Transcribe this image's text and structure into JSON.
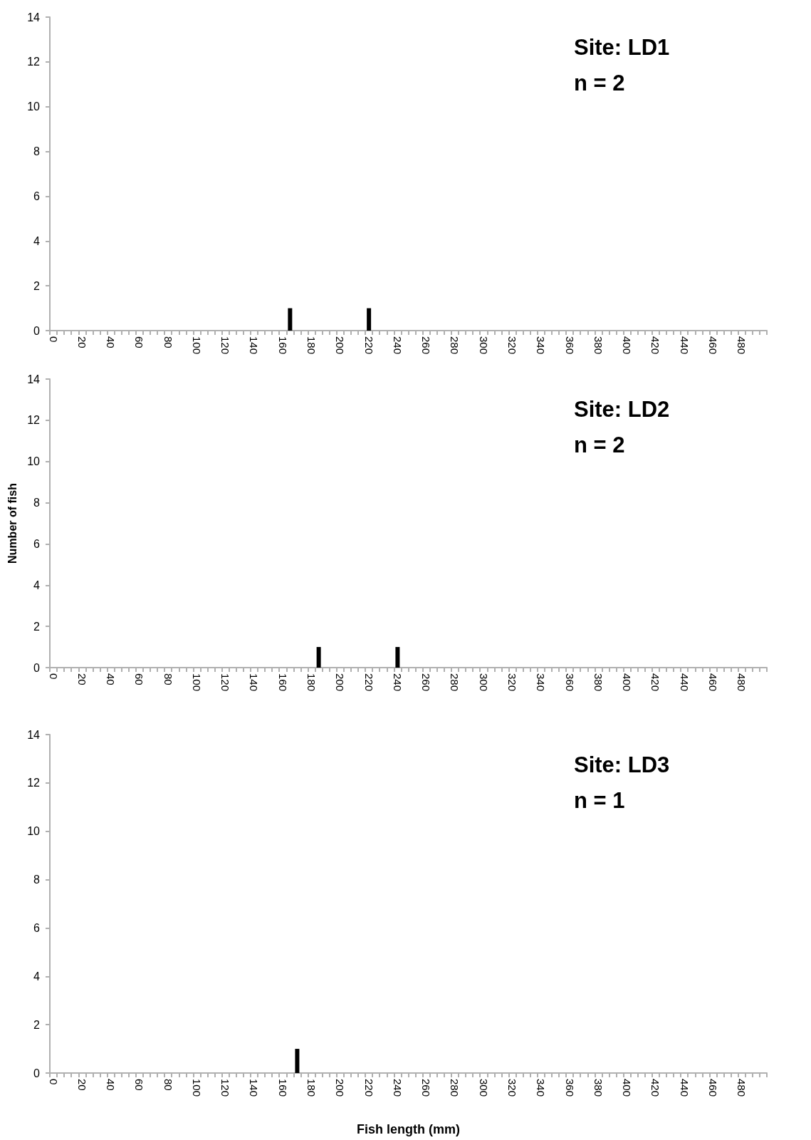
{
  "chart_data": [
    {
      "type": "bar",
      "annotations": [
        "Site: LD1",
        "n = 2"
      ],
      "color": "#000000",
      "categories": [
        "0",
        null,
        null,
        null,
        "20",
        null,
        null,
        null,
        "40",
        null,
        null,
        null,
        "60",
        null,
        null,
        null,
        "80",
        null,
        null,
        null,
        "100",
        null,
        null,
        null,
        "120",
        null,
        null,
        null,
        "140",
        null,
        null,
        null,
        "160",
        null,
        null,
        null,
        "180",
        null,
        null,
        null,
        "200",
        null,
        null,
        null,
        "220",
        null,
        null,
        null,
        "240",
        null,
        null,
        null,
        "260",
        null,
        null,
        null,
        "280",
        null,
        null,
        null,
        "300",
        null,
        null,
        null,
        "320",
        null,
        null,
        null,
        "340",
        null,
        null,
        null,
        "360",
        null,
        null,
        null,
        "380",
        null,
        null,
        null,
        "400",
        null,
        null,
        null,
        "420",
        null,
        null,
        null,
        "440",
        null,
        null,
        null,
        "460",
        null,
        null,
        null,
        "480",
        null,
        null,
        null
      ],
      "values": [
        0,
        0,
        0,
        0,
        0,
        0,
        0,
        0,
        0,
        0,
        0,
        0,
        0,
        0,
        0,
        0,
        0,
        0,
        0,
        0,
        0,
        0,
        0,
        0,
        0,
        0,
        0,
        0,
        0,
        0,
        0,
        0,
        0,
        1,
        0,
        0,
        0,
        0,
        0,
        0,
        0,
        0,
        0,
        0,
        1,
        0,
        0,
        0,
        0,
        0,
        0,
        0,
        0,
        0,
        0,
        0,
        0,
        0,
        0,
        0,
        0,
        0,
        0,
        0,
        0,
        0,
        0,
        0,
        0,
        0,
        0,
        0,
        0,
        0,
        0,
        0,
        0,
        0,
        0,
        0,
        0,
        0,
        0,
        0,
        0,
        0,
        0,
        0,
        0,
        0,
        0,
        0,
        0,
        0,
        0,
        0,
        0,
        0,
        0,
        0
      ],
      "ylim": [
        0,
        14
      ],
      "yticks": [
        0,
        2,
        4,
        6,
        8,
        10,
        12,
        14
      ]
    },
    {
      "type": "bar",
      "annotations": [
        "Site: LD2",
        "n = 2"
      ],
      "ylabel": "Number of fish",
      "color": "#000000",
      "categories": [
        "0",
        null,
        null,
        null,
        "20",
        null,
        null,
        null,
        "40",
        null,
        null,
        null,
        "60",
        null,
        null,
        null,
        "80",
        null,
        null,
        null,
        "100",
        null,
        null,
        null,
        "120",
        null,
        null,
        null,
        "140",
        null,
        null,
        null,
        "160",
        null,
        null,
        null,
        "180",
        null,
        null,
        null,
        "200",
        null,
        null,
        null,
        "220",
        null,
        null,
        null,
        "240",
        null,
        null,
        null,
        "260",
        null,
        null,
        null,
        "280",
        null,
        null,
        null,
        "300",
        null,
        null,
        null,
        "320",
        null,
        null,
        null,
        "340",
        null,
        null,
        null,
        "360",
        null,
        null,
        null,
        "380",
        null,
        null,
        null,
        "400",
        null,
        null,
        null,
        "420",
        null,
        null,
        null,
        "440",
        null,
        null,
        null,
        "460",
        null,
        null,
        null,
        "480",
        null,
        null,
        null
      ],
      "values": [
        0,
        0,
        0,
        0,
        0,
        0,
        0,
        0,
        0,
        0,
        0,
        0,
        0,
        0,
        0,
        0,
        0,
        0,
        0,
        0,
        0,
        0,
        0,
        0,
        0,
        0,
        0,
        0,
        0,
        0,
        0,
        0,
        0,
        0,
        0,
        0,
        0,
        1,
        0,
        0,
        0,
        0,
        0,
        0,
        0,
        0,
        0,
        0,
        1,
        0,
        0,
        0,
        0,
        0,
        0,
        0,
        0,
        0,
        0,
        0,
        0,
        0,
        0,
        0,
        0,
        0,
        0,
        0,
        0,
        0,
        0,
        0,
        0,
        0,
        0,
        0,
        0,
        0,
        0,
        0,
        0,
        0,
        0,
        0,
        0,
        0,
        0,
        0,
        0,
        0,
        0,
        0,
        0,
        0,
        0,
        0,
        0,
        0,
        0,
        0
      ],
      "ylim": [
        0,
        14
      ],
      "yticks": [
        0,
        2,
        4,
        6,
        8,
        10,
        12,
        14
      ]
    },
    {
      "type": "bar",
      "annotations": [
        "Site: LD3",
        "n = 1"
      ],
      "xlabel": "Fish length (mm)",
      "color": "#000000",
      "categories": [
        "0",
        null,
        null,
        null,
        "20",
        null,
        null,
        null,
        "40",
        null,
        null,
        null,
        "60",
        null,
        null,
        null,
        "80",
        null,
        null,
        null,
        "100",
        null,
        null,
        null,
        "120",
        null,
        null,
        null,
        "140",
        null,
        null,
        null,
        "160",
        null,
        null,
        null,
        "180",
        null,
        null,
        null,
        "200",
        null,
        null,
        null,
        "220",
        null,
        null,
        null,
        "240",
        null,
        null,
        null,
        "260",
        null,
        null,
        null,
        "280",
        null,
        null,
        null,
        "300",
        null,
        null,
        null,
        "320",
        null,
        null,
        null,
        "340",
        null,
        null,
        null,
        "360",
        null,
        null,
        null,
        "380",
        null,
        null,
        null,
        "400",
        null,
        null,
        null,
        "420",
        null,
        null,
        null,
        "440",
        null,
        null,
        null,
        "460",
        null,
        null,
        null,
        "480",
        null,
        null,
        null
      ],
      "values": [
        0,
        0,
        0,
        0,
        0,
        0,
        0,
        0,
        0,
        0,
        0,
        0,
        0,
        0,
        0,
        0,
        0,
        0,
        0,
        0,
        0,
        0,
        0,
        0,
        0,
        0,
        0,
        0,
        0,
        0,
        0,
        0,
        0,
        0,
        1,
        0,
        0,
        0,
        0,
        0,
        0,
        0,
        0,
        0,
        0,
        0,
        0,
        0,
        0,
        0,
        0,
        0,
        0,
        0,
        0,
        0,
        0,
        0,
        0,
        0,
        0,
        0,
        0,
        0,
        0,
        0,
        0,
        0,
        0,
        0,
        0,
        0,
        0,
        0,
        0,
        0,
        0,
        0,
        0,
        0,
        0,
        0,
        0,
        0,
        0,
        0,
        0,
        0,
        0,
        0,
        0,
        0,
        0,
        0,
        0,
        0,
        0,
        0,
        0,
        0
      ],
      "ylim": [
        0,
        14
      ],
      "yticks": [
        0,
        2,
        4,
        6,
        8,
        10,
        12,
        14
      ]
    }
  ]
}
